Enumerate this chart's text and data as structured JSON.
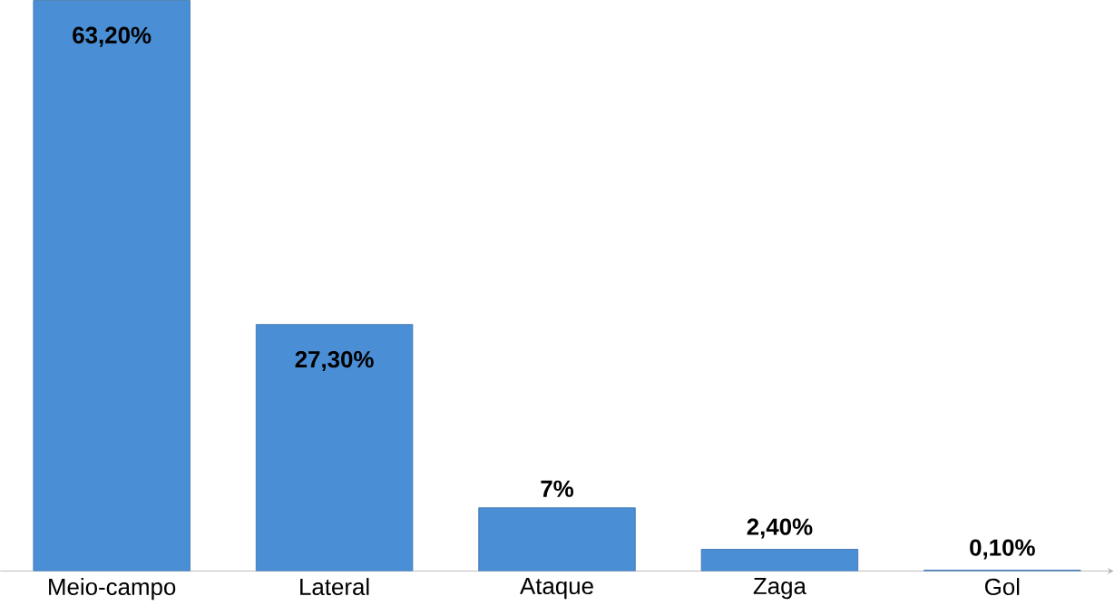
{
  "chart_data": {
    "type": "bar",
    "categories": [
      "Meio-campo",
      "Lateral",
      "Ataque",
      "Zaga",
      "Gol"
    ],
    "values": [
      63.2,
      27.3,
      7,
      2.4,
      0.1
    ],
    "value_labels": [
      "63,20%",
      "27,30%",
      "7%",
      "2,40%",
      "0,10%"
    ],
    "color": "#4a8fd6"
  }
}
